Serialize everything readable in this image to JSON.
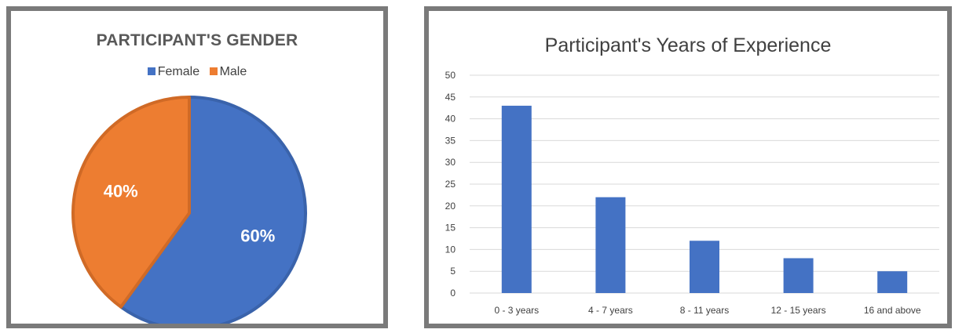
{
  "chart_data": [
    {
      "type": "pie",
      "title": "PARTICIPANT'S GENDER",
      "legend_position": "top",
      "slices": [
        {
          "label": "Female",
          "value": 60,
          "data_label": "60%",
          "color": "#4472C4"
        },
        {
          "label": "Male",
          "value": 40,
          "data_label": "40%",
          "color": "#ED7D31"
        }
      ]
    },
    {
      "type": "bar",
      "title": "Participant's Years of Experience",
      "categories": [
        "0 - 3 years",
        "4 - 7 years",
        "8 - 11 years",
        "12 - 15 years",
        "16 and above"
      ],
      "values": [
        43,
        22,
        12,
        8,
        5
      ],
      "ylim": [
        0,
        50
      ],
      "yticks": [
        "0",
        "5",
        "10",
        "15",
        "20",
        "25",
        "30",
        "35",
        "40",
        "45",
        "50"
      ],
      "grid": true,
      "color": "#4472C4"
    }
  ]
}
